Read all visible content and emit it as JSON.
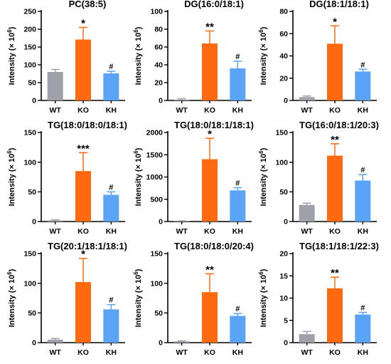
{
  "colors": {
    "WT": "#a0a0aa",
    "KO": "#ff6a10",
    "KH": "#5aa4f8"
  },
  "ylabel": "Intensity (× 10",
  "ylabel_exp": "6",
  "ylabel_close": ")",
  "chart_data": [
    {
      "type": "bar",
      "title": "PC(38:5)",
      "categories": [
        "WT",
        "KO",
        "KH"
      ],
      "values": [
        80,
        171,
        76
      ],
      "errors": [
        7,
        34,
        6
      ],
      "ylim": [
        0,
        250
      ],
      "yticks": [
        0,
        50,
        100,
        150,
        200,
        250
      ],
      "annotations": [
        "",
        "*",
        "#"
      ]
    },
    {
      "type": "bar",
      "title": "DG(16:0/18:1)",
      "categories": [
        "WT",
        "KO",
        "KH"
      ],
      "values": [
        1,
        64,
        36
      ],
      "errors": [
        1,
        14,
        8
      ],
      "ylim": [
        0,
        100
      ],
      "yticks": [
        0,
        20,
        40,
        60,
        80,
        100
      ],
      "annotations": [
        "",
        "**",
        "#"
      ]
    },
    {
      "type": "bar",
      "title": "DG(18:1/18:1)",
      "categories": [
        "WT",
        "KO",
        "KH"
      ],
      "values": [
        3,
        51,
        26
      ],
      "errors": [
        1,
        16,
        2
      ],
      "ylim": [
        0,
        80
      ],
      "yticks": [
        0,
        20,
        40,
        60,
        80
      ],
      "annotations": [
        "",
        "*",
        "#"
      ]
    },
    {
      "type": "bar",
      "title": "TG(18:0/18:0/18:1)",
      "categories": [
        "WT",
        "KO",
        "KH"
      ],
      "values": [
        2,
        85,
        45
      ],
      "errors": [
        1,
        31,
        5
      ],
      "ylim": [
        0,
        150
      ],
      "yticks": [
        0,
        50,
        100,
        150
      ],
      "annotations": [
        "",
        "***",
        "#"
      ]
    },
    {
      "type": "bar",
      "title": "TG(18:0/18:1/18:1)",
      "categories": [
        "WT",
        "KO",
        "KH"
      ],
      "values": [
        10,
        1400,
        700
      ],
      "errors": [
        5,
        470,
        60
      ],
      "ylim": [
        0,
        2000
      ],
      "yticks": [
        0,
        500,
        1000,
        1500,
        2000
      ],
      "annotations": [
        "",
        "*",
        "#"
      ]
    },
    {
      "type": "bar",
      "title": "TG(16:0/18:1/20:3)",
      "categories": [
        "WT",
        "KO",
        "KH"
      ],
      "values": [
        28,
        111,
        69
      ],
      "errors": [
        3,
        20,
        10
      ],
      "ylim": [
        0,
        150
      ],
      "yticks": [
        0,
        50,
        100,
        150
      ],
      "annotations": [
        "",
        "**",
        "#"
      ]
    },
    {
      "type": "bar",
      "title": "TG(20:1/18:1/18:1)",
      "categories": [
        "WT",
        "KO",
        "KH"
      ],
      "values": [
        5,
        102,
        56
      ],
      "errors": [
        2,
        40,
        8
      ],
      "ylim": [
        0,
        150
      ],
      "yticks": [
        0,
        50,
        100,
        150
      ],
      "annotations": [
        "",
        "*",
        "#"
      ]
    },
    {
      "type": "bar",
      "title": "TG(18:0/18:0/20:4)",
      "categories": [
        "WT",
        "KO",
        "KH"
      ],
      "values": [
        2,
        85,
        45
      ],
      "errors": [
        1,
        31,
        4
      ],
      "ylim": [
        0,
        150
      ],
      "yticks": [
        0,
        50,
        100,
        150
      ],
      "annotations": [
        "",
        "**",
        "#"
      ]
    },
    {
      "type": "bar",
      "title": "TG(18:1/18:1/22:3)",
      "categories": [
        "WT",
        "KO",
        "KH"
      ],
      "values": [
        1.9,
        12.2,
        6.3
      ],
      "errors": [
        0.6,
        2.5,
        0.5
      ],
      "ylim": [
        0,
        20
      ],
      "yticks": [
        0,
        5,
        10,
        15,
        20
      ],
      "annotations": [
        "",
        "**",
        "#"
      ]
    }
  ]
}
